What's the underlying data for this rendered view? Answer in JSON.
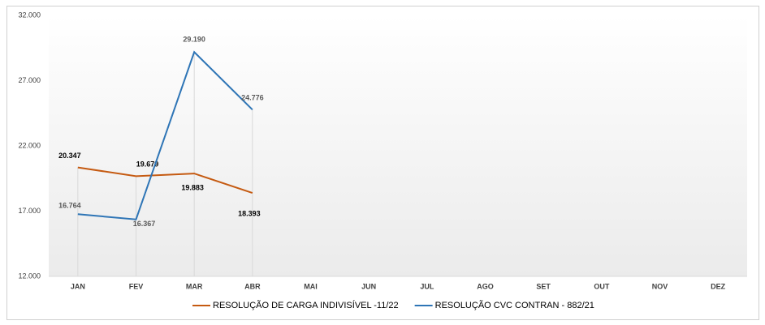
{
  "chart_data": {
    "type": "line",
    "categories": [
      "JAN",
      "FEV",
      "MAR",
      "ABR",
      "MAI",
      "JUN",
      "JUL",
      "AGO",
      "SET",
      "OUT",
      "NOV",
      "DEZ"
    ],
    "series": [
      {
        "name": "RESOLUÇÃO DE CARGA INDIVISÍVEL -11/22",
        "color": "#c55a11",
        "values": [
          20347,
          19679,
          19883,
          18393,
          null,
          null,
          null,
          null,
          null,
          null,
          null,
          null
        ],
        "value_labels": [
          "20.347",
          "19.679",
          "19.883",
          "18.393",
          null,
          null,
          null,
          null,
          null,
          null,
          null,
          null
        ]
      },
      {
        "name": "RESOLUÇÃO CVC CONTRAN - 882/21",
        "color": "#2e75b6",
        "values": [
          16764,
          16367,
          29190,
          24776,
          null,
          null,
          null,
          null,
          null,
          null,
          null,
          null
        ],
        "value_labels": [
          "16.764",
          "16.367",
          "29.190",
          "24.776",
          null,
          null,
          null,
          null,
          null,
          null,
          null,
          null
        ]
      }
    ],
    "ylim": [
      12000,
      32000
    ],
    "yticks": [
      {
        "value": 12000,
        "label": "12.000"
      },
      {
        "value": 17000,
        "label": "17.000"
      },
      {
        "value": 22000,
        "label": "22.000"
      },
      {
        "value": 27000,
        "label": "27.000"
      },
      {
        "value": 32000,
        "label": "32.000"
      }
    ],
    "legend": "bottom"
  }
}
